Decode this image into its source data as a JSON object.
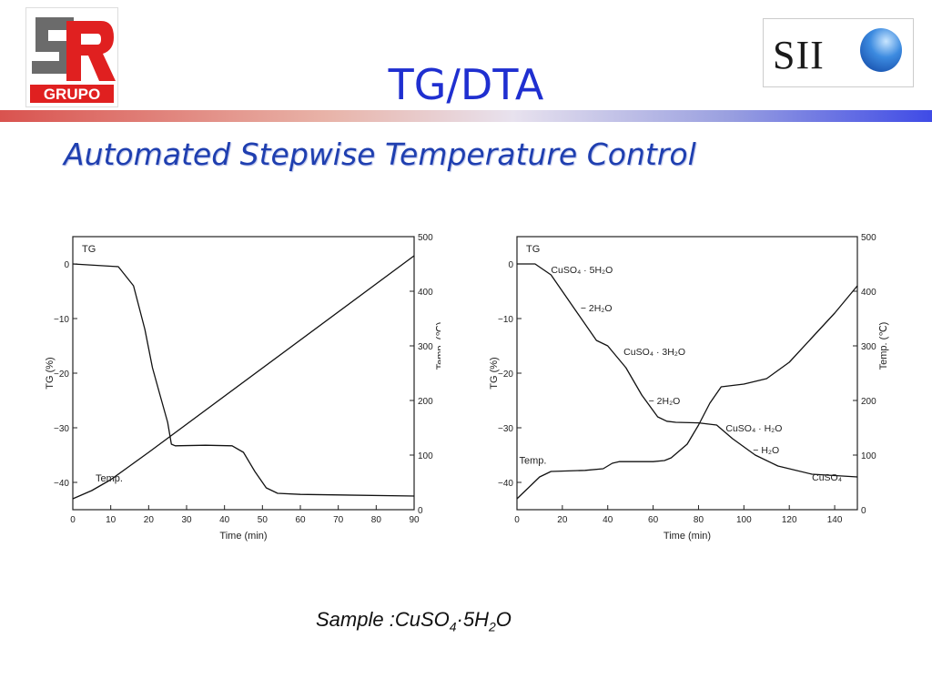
{
  "header": {
    "title": "TG/DTA",
    "subtitle": "Automated Stepwise Temperature Control",
    "left_logo_text": "GRUPO",
    "right_logo_text": "SII"
  },
  "footer": {
    "sample_prefix": "Sample :CuSO",
    "sample_sub1": "4",
    "sample_mid": "·5H",
    "sample_sub2": "2",
    "sample_suffix": "O"
  },
  "colors": {
    "title": "#1f2fd0",
    "subtitle": "#1f3fb0",
    "logo_red": "#e02020",
    "logo_gray": "#6b6b6b"
  },
  "chart_data": [
    {
      "type": "line",
      "xlabel": "Time (min)",
      "ylabel_left": "TG (%)",
      "ylabel_right": "Temp. (℃)",
      "xlim": [
        0,
        90
      ],
      "ylim_left": [
        -45,
        5
      ],
      "ylim_right": [
        0,
        500
      ],
      "xticks": [
        0,
        10,
        20,
        30,
        40,
        50,
        60,
        70,
        80,
        90
      ],
      "yticks_left": [
        0,
        -10,
        -20,
        -30,
        -40
      ],
      "yticks_right": [
        0,
        100,
        200,
        300,
        400,
        500
      ],
      "series": [
        {
          "name": "TG",
          "axis": "left",
          "x": [
            0,
            12,
            16,
            19,
            21,
            23,
            25,
            26,
            27,
            35,
            42,
            45,
            48,
            51,
            54,
            60,
            90
          ],
          "y": [
            0,
            -0.5,
            -4,
            -12,
            -19,
            -24,
            -29,
            -33,
            -33.3,
            -33.2,
            -33.3,
            -34.5,
            -38,
            -41,
            -42,
            -42.2,
            -42.5
          ]
        },
        {
          "name": "Temp.",
          "axis": "right",
          "x": [
            0,
            5,
            10,
            15,
            20,
            90
          ],
          "y": [
            20,
            35,
            55,
            80,
            105,
            465
          ]
        }
      ]
    },
    {
      "type": "line",
      "xlabel": "Time (min)",
      "ylabel_left": "TG (%)",
      "ylabel_right": "Temp. (℃)",
      "xlim": [
        0,
        150
      ],
      "ylim_left": [
        -45,
        5
      ],
      "ylim_right": [
        0,
        500
      ],
      "xticks": [
        0,
        20,
        40,
        60,
        80,
        100,
        120,
        140
      ],
      "yticks_left": [
        0,
        -10,
        -20,
        -30,
        -40
      ],
      "yticks_right": [
        0,
        100,
        200,
        300,
        400,
        500
      ],
      "annotations": [
        {
          "text": "CuSO₄ · 5H₂O",
          "x": 15,
          "y": -1
        },
        {
          "text": "− 2H₂O",
          "x": 28,
          "y": -8
        },
        {
          "text": "CuSO₄ · 3H₂O",
          "x": 47,
          "y": -16
        },
        {
          "text": "− 2H₂O",
          "x": 58,
          "y": -25
        },
        {
          "text": "CuSO₄ · H₂O",
          "x": 92,
          "y": -30
        },
        {
          "text": "− H₂O",
          "x": 104,
          "y": -34
        },
        {
          "text": "CuSO₄",
          "x": 130,
          "y": -39
        }
      ],
      "series": [
        {
          "name": "TG",
          "axis": "left",
          "x": [
            0,
            8,
            15,
            25,
            35,
            40,
            42,
            48,
            55,
            62,
            66,
            70,
            80,
            88,
            95,
            105,
            115,
            130,
            150
          ],
          "y": [
            0,
            0,
            -2,
            -8,
            -14,
            -15,
            -16,
            -19,
            -24,
            -28,
            -28.8,
            -29,
            -29.1,
            -29.5,
            -32,
            -35,
            -37,
            -38.5,
            -39
          ]
        },
        {
          "name": "Temp.",
          "axis": "right",
          "x": [
            0,
            5,
            10,
            15,
            30,
            38,
            42,
            45,
            60,
            65,
            68,
            75,
            80,
            85,
            90,
            100,
            110,
            120,
            130,
            140,
            150
          ],
          "y": [
            20,
            40,
            60,
            70,
            72,
            75,
            85,
            88,
            88,
            90,
            95,
            120,
            155,
            195,
            225,
            230,
            240,
            270,
            315,
            360,
            410
          ]
        }
      ]
    }
  ]
}
